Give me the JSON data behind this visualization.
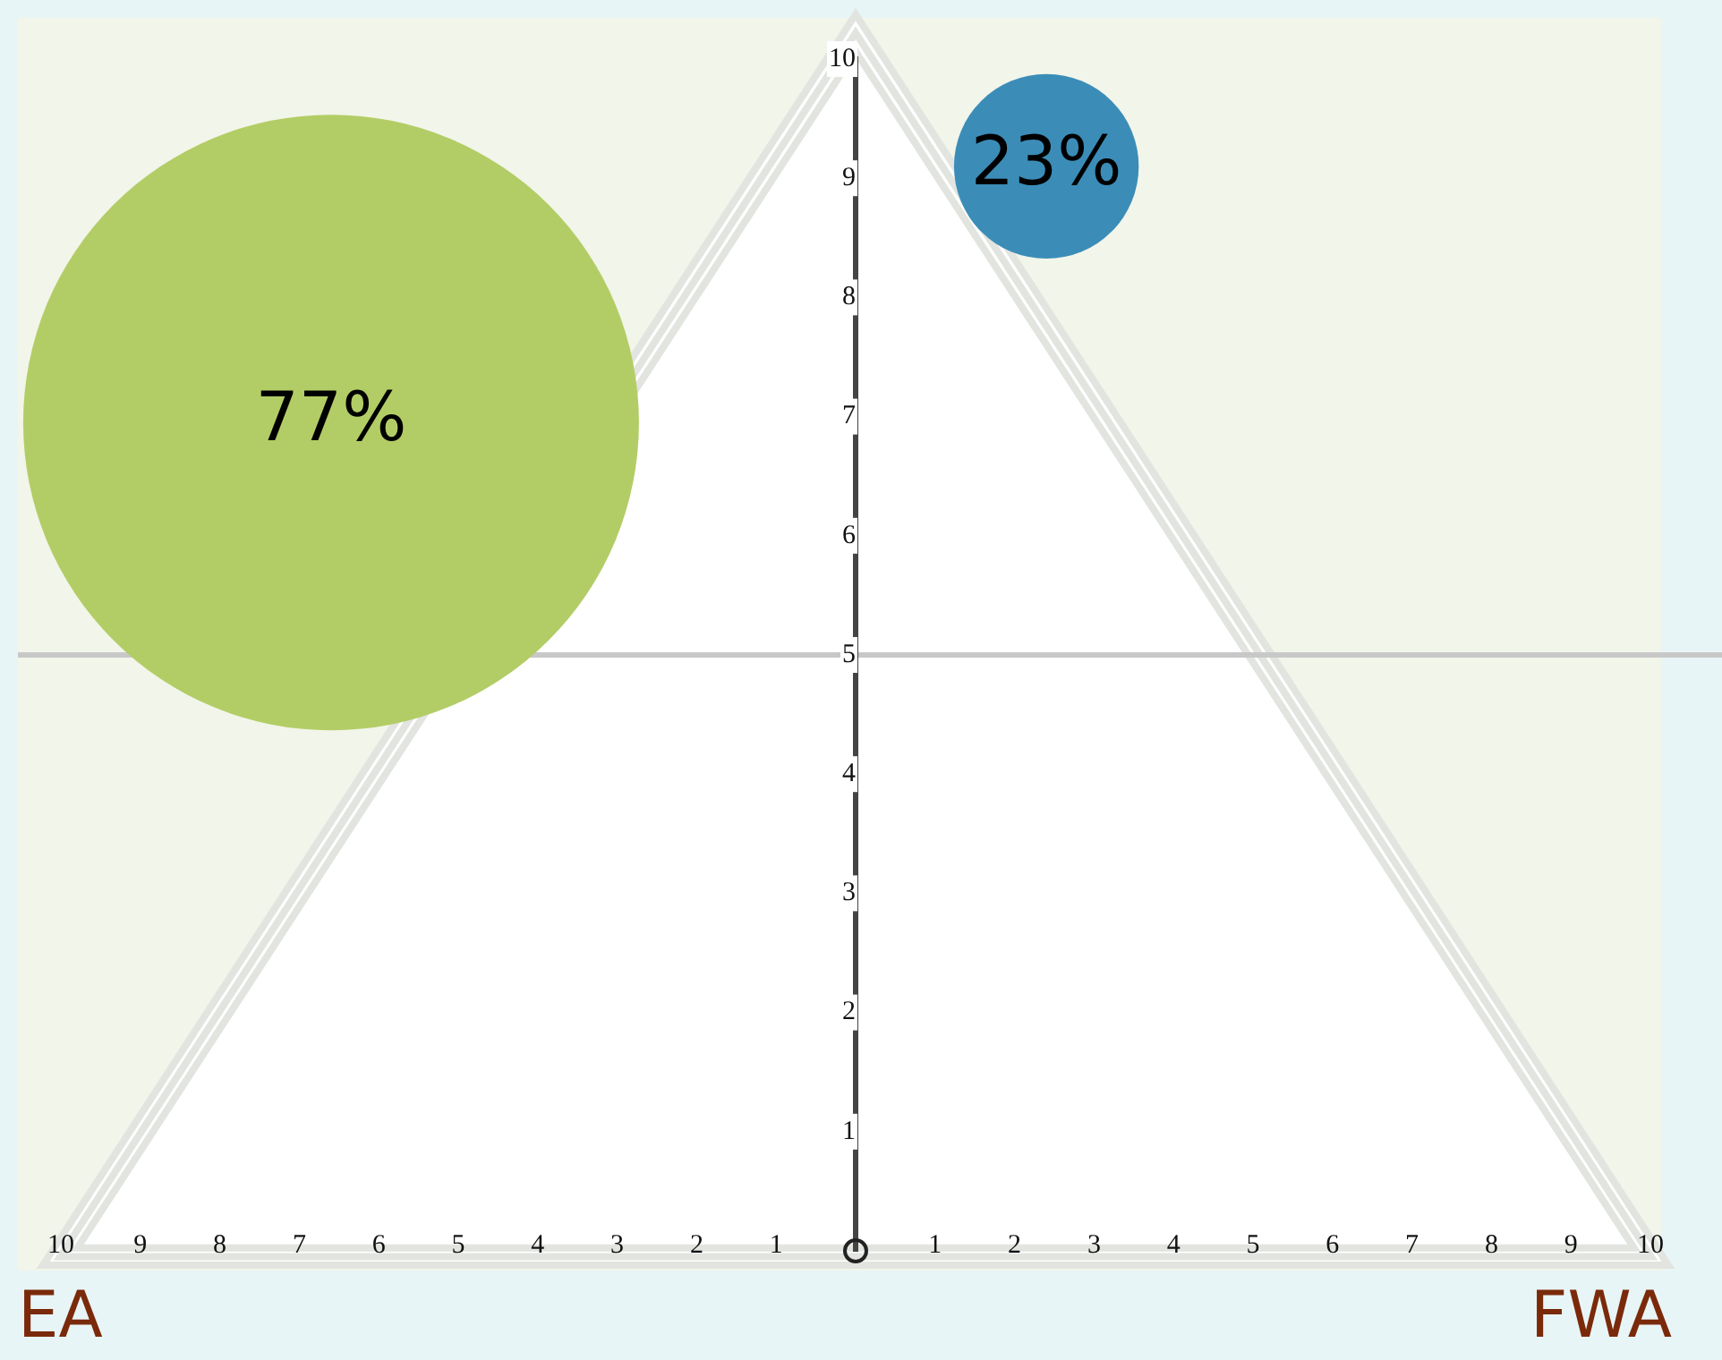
{
  "chart_data": {
    "type": "bubble",
    "x": [
      -6.6,
      2.4
    ],
    "values": [
      6.95,
      9.1
    ],
    "sizes": [
      1,
      0.09
    ],
    "colors": [
      "#b3cd66",
      "#3b8db8"
    ],
    "xlim": [
      -10,
      10
    ],
    "ylim": [
      0,
      10
    ],
    "xticks": [
      {
        "value": -10,
        "label": "10"
      },
      {
        "value": -9,
        "label": "9"
      },
      {
        "value": -8,
        "label": "8"
      },
      {
        "value": -7,
        "label": "7"
      },
      {
        "value": -6,
        "label": "6"
      },
      {
        "value": -5,
        "label": "5"
      },
      {
        "value": -4,
        "label": "4"
      },
      {
        "value": -3,
        "label": "3"
      },
      {
        "value": -2,
        "label": "2"
      },
      {
        "value": -1,
        "label": "1"
      },
      {
        "value": 0,
        "label": null
      },
      1,
      2,
      3,
      4,
      5,
      6,
      7,
      8,
      9,
      10
    ],
    "yticks": [
      1,
      2,
      3,
      4,
      5,
      6,
      7,
      8,
      9,
      10
    ],
    "ref_lines": [
      {
        "axis": "y",
        "value": 5,
        "color": "#c8c8c8"
      }
    ],
    "annotations": [
      {
        "text": "77%",
        "x": -6.6,
        "y": 6.95
      },
      {
        "text": "23%",
        "x": 2.4,
        "y": 9.1
      },
      "EA",
      "FWA"
    ],
    "grid": false,
    "legend": false
  }
}
